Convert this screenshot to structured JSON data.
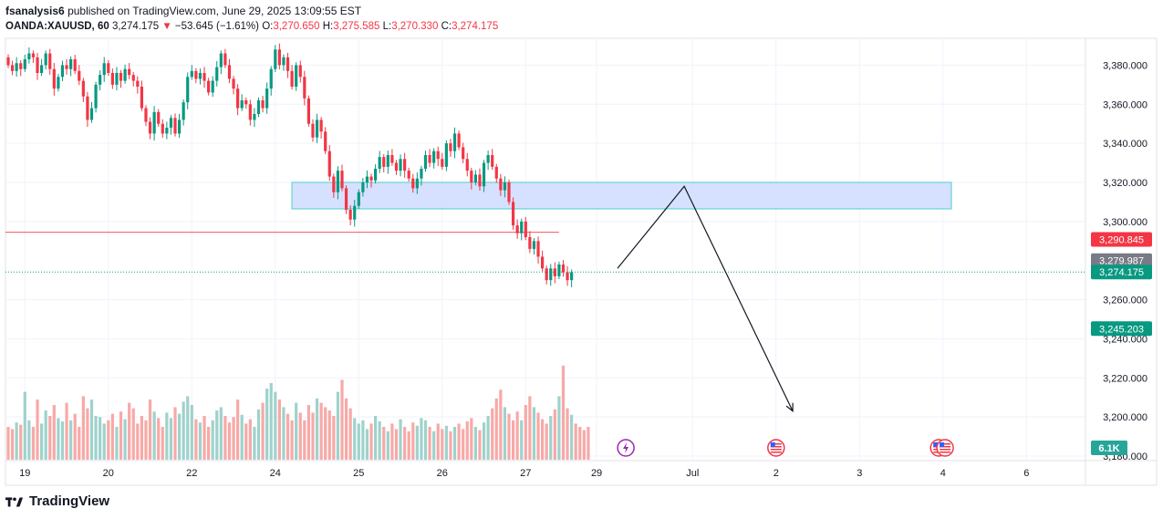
{
  "header": {
    "author": "fsanalysis6",
    "published_text": "published on TradingView.com, June 29, 2025 13:09:55 EST",
    "symbol": "OANDA:XAUUSD, 60",
    "last": "3,274.175",
    "change_arrow": "▼",
    "change": "−53.645 (−1.61%)",
    "o_label": "O:",
    "o_value": "3,270.650",
    "h_label": "H:",
    "h_value": "3,275.585",
    "l_label": "L:",
    "l_value": "3,270.330",
    "c_label": "C:",
    "c_value": "3,274.175"
  },
  "footer": {
    "brand": "TradingView"
  },
  "colors": {
    "up": "#089981",
    "down": "#f23645",
    "zone_fill": "#cfdcff",
    "zone_border": "#7fd9dc",
    "vol_up": "#9fd2cc",
    "vol_down": "#f7a9a7"
  },
  "chart_data": {
    "type": "candlestick",
    "ylim": [
      3180,
      3390
    ],
    "y_ticks": [
      {
        "value": 3380,
        "label": "3,380.000"
      },
      {
        "value": 3360,
        "label": "3,360.000"
      },
      {
        "value": 3340,
        "label": "3,340.000"
      },
      {
        "value": 3320,
        "label": "3,320.000"
      },
      {
        "value": 3300,
        "label": "3,300.000"
      },
      {
        "value": 3260,
        "label": "3,260.000"
      },
      {
        "value": 3240,
        "label": "3,240.000"
      },
      {
        "value": 3220,
        "label": "3,220.000"
      },
      {
        "value": 3200,
        "label": "3,200.000"
      },
      {
        "value": 3180,
        "label": "3,180.000"
      }
    ],
    "x_ticks": [
      {
        "t": 4,
        "label": "19"
      },
      {
        "t": 24,
        "label": "20"
      },
      {
        "t": 44,
        "label": "22"
      },
      {
        "t": 64,
        "label": "24"
      },
      {
        "t": 84,
        "label": "25"
      },
      {
        "t": 104,
        "label": "26"
      },
      {
        "t": 124,
        "label": "27"
      },
      {
        "t": 141,
        "label": "29"
      },
      {
        "t": 164,
        "label": "Jul"
      },
      {
        "t": 184,
        "label": "2"
      },
      {
        "t": 204,
        "label": "3"
      },
      {
        "t": 224,
        "label": "4"
      },
      {
        "t": 244,
        "label": "6"
      }
    ],
    "price_labels": [
      {
        "value": 3290.845,
        "label": "3,290.845",
        "color": "#f23645"
      },
      {
        "value": 3279.987,
        "label": "3,279.987",
        "color": "#787b86"
      },
      {
        "value": 3274.175,
        "label": "3,274.175",
        "color": "#089981"
      },
      {
        "value": 3245.203,
        "label": "3,245.203",
        "color": "#089981"
      }
    ],
    "volume_label": "6.1K",
    "current_price": 3274.175,
    "horizontal_line": {
      "value": 3294.5,
      "t_start": 0,
      "t_end": 132
    },
    "zone": {
      "top": 3320,
      "bottom": 3306.5,
      "t_start": 68,
      "t_end": 226
    },
    "projection": [
      {
        "t": 146,
        "price": 3276
      },
      {
        "t": 162,
        "price": 3318
      },
      {
        "t": 188,
        "price": 3203
      }
    ],
    "events": [
      {
        "t": 148,
        "kind": "lightning"
      },
      {
        "t": 184,
        "kind": "flag"
      },
      {
        "t": 223,
        "kind": "flag"
      },
      {
        "t": 224.5,
        "kind": "flag"
      }
    ],
    "candles": [
      [
        3384,
        3380
      ],
      [
        3380,
        3377
      ],
      [
        3377,
        3381
      ],
      [
        3381,
        3378
      ],
      [
        3378,
        3383
      ],
      [
        3383,
        3386
      ],
      [
        3386,
        3384
      ],
      [
        3384,
        3376
      ],
      [
        3376,
        3380
      ],
      [
        3380,
        3386
      ],
      [
        3386,
        3378
      ],
      [
        3378,
        3368
      ],
      [
        3368,
        3374
      ],
      [
        3374,
        3380
      ],
      [
        3380,
        3378
      ],
      [
        3378,
        3383
      ],
      [
        3383,
        3377
      ],
      [
        3377,
        3372
      ],
      [
        3372,
        3364
      ],
      [
        3364,
        3352
      ],
      [
        3352,
        3358
      ],
      [
        3358,
        3370
      ],
      [
        3370,
        3375
      ],
      [
        3375,
        3381
      ],
      [
        3381,
        3376
      ],
      [
        3376,
        3370
      ],
      [
        3370,
        3376
      ],
      [
        3376,
        3372
      ],
      [
        3372,
        3378
      ],
      [
        3378,
        3375
      ],
      [
        3375,
        3372
      ],
      [
        3372,
        3369
      ],
      [
        3369,
        3358
      ],
      [
        3358,
        3351
      ],
      [
        3351,
        3345
      ],
      [
        3345,
        3356
      ],
      [
        3356,
        3350
      ],
      [
        3350,
        3345
      ],
      [
        3345,
        3348
      ],
      [
        3348,
        3353
      ],
      [
        3353,
        3345
      ],
      [
        3345,
        3352
      ],
      [
        3352,
        3361
      ],
      [
        3361,
        3374
      ],
      [
        3374,
        3377
      ],
      [
        3377,
        3373
      ],
      [
        3373,
        3376
      ],
      [
        3376,
        3372
      ],
      [
        3372,
        3366
      ],
      [
        3366,
        3372
      ],
      [
        3372,
        3379
      ],
      [
        3379,
        3386
      ],
      [
        3386,
        3380
      ],
      [
        3380,
        3373
      ],
      [
        3373,
        3368
      ],
      [
        3368,
        3358
      ],
      [
        3358,
        3362
      ],
      [
        3362,
        3360
      ],
      [
        3360,
        3352
      ],
      [
        3352,
        3355
      ],
      [
        3355,
        3362
      ],
      [
        3362,
        3358
      ],
      [
        3358,
        3368
      ],
      [
        3368,
        3378
      ],
      [
        3378,
        3388
      ],
      [
        3388,
        3380
      ],
      [
        3380,
        3384
      ],
      [
        3384,
        3377
      ],
      [
        3377,
        3369
      ],
      [
        3369,
        3380
      ],
      [
        3380,
        3374
      ],
      [
        3374,
        3363
      ],
      [
        3363,
        3350
      ],
      [
        3350,
        3343
      ],
      [
        3343,
        3352
      ],
      [
        3352,
        3346
      ],
      [
        3346,
        3336
      ],
      [
        3336,
        3323
      ],
      [
        3323,
        3315
      ],
      [
        3315,
        3326
      ],
      [
        3326,
        3317
      ],
      [
        3317,
        3306
      ],
      [
        3306,
        3301
      ],
      [
        3301,
        3308
      ],
      [
        3308,
        3315
      ],
      [
        3315,
        3320
      ],
      [
        3320,
        3323
      ],
      [
        3323,
        3321
      ],
      [
        3321,
        3327
      ],
      [
        3327,
        3333
      ],
      [
        3333,
        3328
      ],
      [
        3328,
        3334
      ],
      [
        3334,
        3330
      ],
      [
        3330,
        3326
      ],
      [
        3326,
        3332
      ],
      [
        3332,
        3326
      ],
      [
        3326,
        3322
      ],
      [
        3322,
        3317
      ],
      [
        3317,
        3322
      ],
      [
        3322,
        3327
      ],
      [
        3327,
        3334
      ],
      [
        3334,
        3330
      ],
      [
        3330,
        3336
      ],
      [
        3336,
        3332
      ],
      [
        3332,
        3328
      ],
      [
        3328,
        3340
      ],
      [
        3340,
        3336
      ],
      [
        3336,
        3345
      ],
      [
        3345,
        3338
      ],
      [
        3338,
        3332
      ],
      [
        3332,
        3326
      ],
      [
        3326,
        3320
      ],
      [
        3320,
        3324
      ],
      [
        3324,
        3318
      ],
      [
        3318,
        3330
      ],
      [
        3330,
        3334
      ],
      [
        3334,
        3328
      ],
      [
        3328,
        3322
      ],
      [
        3322,
        3316
      ],
      [
        3316,
        3320
      ],
      [
        3320,
        3310
      ],
      [
        3310,
        3298
      ],
      [
        3298,
        3294
      ],
      [
        3294,
        3300
      ],
      [
        3300,
        3292
      ],
      [
        3292,
        3286
      ],
      [
        3286,
        3290
      ],
      [
        3290,
        3282
      ],
      [
        3282,
        3276
      ],
      [
        3276,
        3270
      ],
      [
        3270,
        3276
      ],
      [
        3276,
        3272
      ],
      [
        3272,
        3278
      ],
      [
        3278,
        3274
      ],
      [
        3274,
        3270
      ],
      [
        3270,
        3274
      ]
    ],
    "volumes": [
      0.3,
      0.28,
      0.34,
      0.32,
      0.62,
      0.36,
      0.3,
      0.55,
      0.33,
      0.45,
      0.4,
      0.5,
      0.38,
      0.35,
      0.52,
      0.36,
      0.42,
      0.3,
      0.58,
      0.47,
      0.55,
      0.4,
      0.39,
      0.33,
      0.36,
      0.42,
      0.3,
      0.44,
      0.37,
      0.52,
      0.47,
      0.33,
      0.4,
      0.36,
      0.55,
      0.44,
      0.38,
      0.3,
      0.43,
      0.38,
      0.48,
      0.42,
      0.53,
      0.58,
      0.5,
      0.37,
      0.34,
      0.4,
      0.3,
      0.36,
      0.45,
      0.48,
      0.4,
      0.34,
      0.39,
      0.55,
      0.41,
      0.33,
      0.37,
      0.3,
      0.46,
      0.52,
      0.65,
      0.7,
      0.62,
      0.55,
      0.48,
      0.42,
      0.36,
      0.52,
      0.43,
      0.36,
      0.5,
      0.43,
      0.56,
      0.52,
      0.48,
      0.45,
      0.4,
      0.62,
      0.73,
      0.56,
      0.47,
      0.38,
      0.33,
      0.36,
      0.28,
      0.33,
      0.4,
      0.35,
      0.3,
      0.26,
      0.33,
      0.28,
      0.37,
      0.3,
      0.26,
      0.34,
      0.31,
      0.38,
      0.36,
      0.3,
      0.26,
      0.33,
      0.28,
      0.31,
      0.26,
      0.3,
      0.33,
      0.28,
      0.35,
      0.38,
      0.3,
      0.27,
      0.34,
      0.4,
      0.47,
      0.56,
      0.64,
      0.48,
      0.42,
      0.36,
      0.44,
      0.36,
      0.5,
      0.58,
      0.48,
      0.43,
      0.37,
      0.33,
      0.4,
      0.46,
      0.58,
      0.86,
      0.47,
      0.41,
      0.33,
      0.3,
      0.27,
      0.3
    ]
  }
}
